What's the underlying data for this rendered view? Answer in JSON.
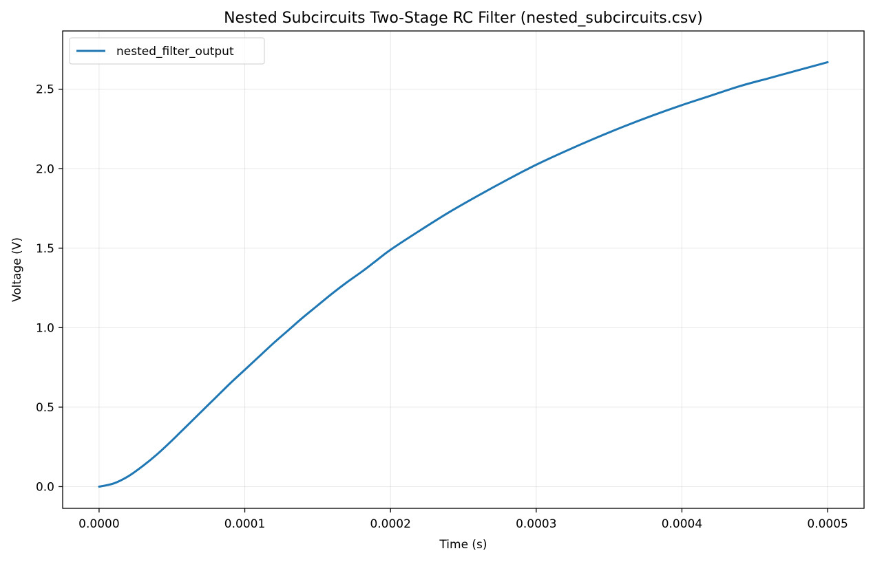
{
  "chart_data": {
    "type": "line",
    "title": "Nested Subcircuits Two-Stage RC Filter (nested_subcircuits.csv)",
    "xlabel": "Time (s)",
    "ylabel": "Voltage (V)",
    "xlim": [
      -2.5e-05,
      0.000525
    ],
    "ylim": [
      -0.1365,
      2.8665
    ],
    "grid": true,
    "legend_position": "top-left",
    "x_ticks": [
      0.0,
      0.0001,
      0.0002,
      0.0003,
      0.0004,
      0.0005
    ],
    "x_tick_labels": [
      "0.0000",
      "0.0001",
      "0.0002",
      "0.0003",
      "0.0004",
      "0.0005"
    ],
    "y_ticks": [
      0.0,
      0.5,
      1.0,
      1.5,
      2.0,
      2.5
    ],
    "y_tick_labels": [
      "0.0",
      "0.5",
      "1.0",
      "1.5",
      "2.0",
      "2.5"
    ],
    "series": [
      {
        "name": "nested_filter_output",
        "color": "#1f77b4",
        "x": [
          0,
          1e-05,
          2e-05,
          3e-05,
          4e-05,
          5e-05,
          6e-05,
          7e-05,
          8e-05,
          9e-05,
          0.0001,
          0.00011,
          0.00012,
          0.00013,
          0.00014,
          0.00015,
          0.00016,
          0.00017,
          0.00018,
          0.00019,
          0.0002,
          0.00022,
          0.00024,
          0.00026,
          0.00028,
          0.0003,
          0.00032,
          0.00034,
          0.00036,
          0.00038,
          0.0004,
          0.00042,
          0.00044,
          0.00046,
          0.00048,
          0.0005
        ],
        "y": [
          0.0,
          0.02,
          0.065,
          0.13,
          0.205,
          0.29,
          0.38,
          0.47,
          0.56,
          0.65,
          0.735,
          0.82,
          0.905,
          0.985,
          1.065,
          1.14,
          1.215,
          1.285,
          1.35,
          1.42,
          1.49,
          1.61,
          1.725,
          1.83,
          1.93,
          2.025,
          2.11,
          2.19,
          2.265,
          2.335,
          2.4,
          2.46,
          2.52,
          2.57,
          2.62,
          2.67
        ]
      }
    ]
  }
}
